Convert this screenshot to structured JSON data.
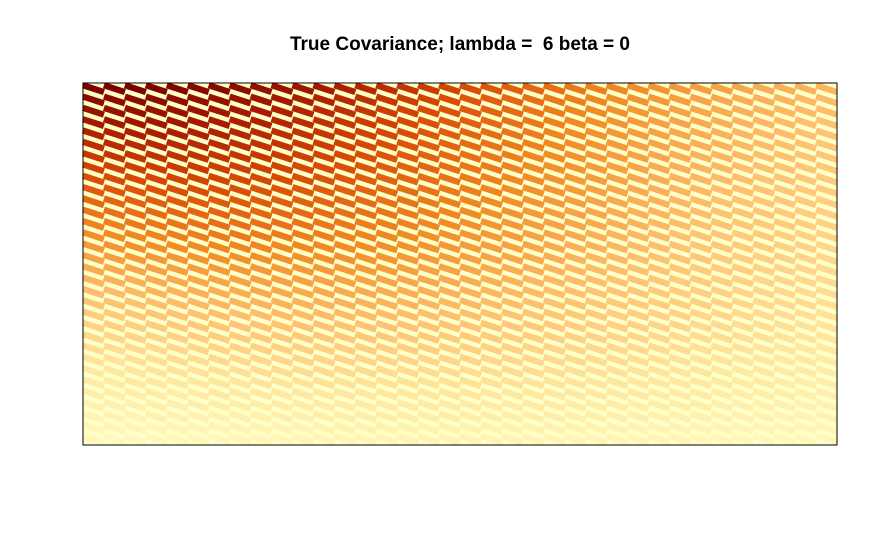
{
  "chart_data": {
    "type": "heatmap",
    "title": "True Covariance; lambda =  6 beta = 0",
    "xlabel": "",
    "ylabel": "",
    "axes_visible": false,
    "grid": false,
    "legend": "none",
    "n_rows": 32,
    "n_cols": 36,
    "value_range": [
      0,
      1
    ],
    "structure": "banded diagonal covariance; value decays with distance from the diagonal",
    "colormap": [
      "#FFFFC8",
      "#FFE8A0",
      "#FDBF6F",
      "#F08A24",
      "#D84A05",
      "#A61A00",
      "#7A0000"
    ]
  }
}
